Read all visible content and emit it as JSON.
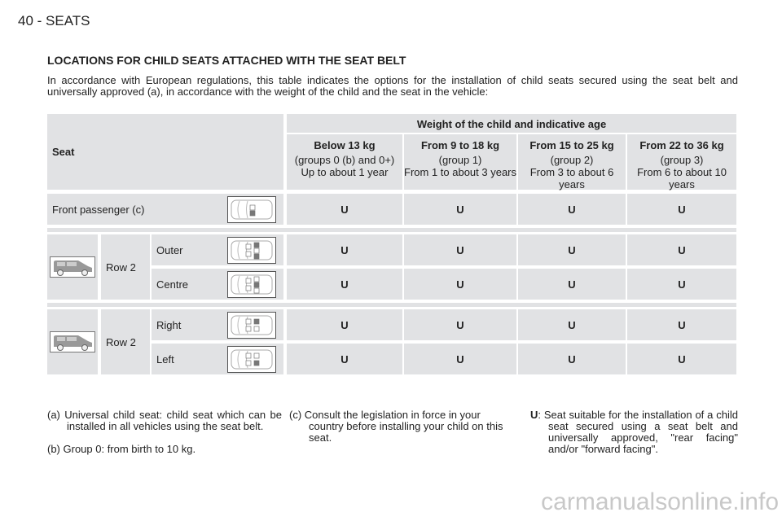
{
  "page": {
    "header": "40 - SEATS",
    "title": "LOCATIONS FOR CHILD SEATS ATTACHED WITH THE SEAT BELT",
    "intro": "In accordance with European regulations, this table indicates the options for the installation of child seats secured using the seat belt and universally approved (a), in accordance with the weight of the child and the seat in the vehicle:"
  },
  "table": {
    "seat_header": "Seat",
    "weight_header": "Weight of the child and indicative age",
    "columns": [
      {
        "weight": "Below 13 kg",
        "group": "(groups 0 (b) and 0+)",
        "age": "Up to about 1 year"
      },
      {
        "weight": "From 9 to 18 kg",
        "group": "(group 1)",
        "age": "From 1 to about 3 years"
      },
      {
        "weight": "From 15 to 25 kg",
        "group": "(group 2)",
        "age": "From 3 to about 6 years"
      },
      {
        "weight": "From 22 to 36 kg",
        "group": "(group 3)",
        "age": "From 6 to about 10 years"
      }
    ],
    "front": {
      "label": "Front passenger (c)",
      "values": [
        "U",
        "U",
        "U",
        "U"
      ]
    },
    "block1": {
      "row": "Row 2",
      "rows": [
        {
          "label": "Outer",
          "values": [
            "U",
            "U",
            "U",
            "U"
          ]
        },
        {
          "label": "Centre",
          "values": [
            "U",
            "U",
            "U",
            "U"
          ]
        }
      ]
    },
    "block2": {
      "row": "Row 2",
      "rows": [
        {
          "label": "Right",
          "values": [
            "U",
            "U",
            "U",
            "U"
          ]
        },
        {
          "label": "Left",
          "values": [
            "U",
            "U",
            "U",
            "U"
          ]
        }
      ]
    }
  },
  "notes": {
    "a": "(a) Universal child seat: child seat which can be installed in all vehicles using the seat belt.",
    "b": "(b) Group 0: from birth to 10 kg.",
    "c": "(c) Consult the legislation in force in your country before installing your child on this seat.",
    "u_key": "U",
    "u_text": ": Seat suitable for the installation of a child seat secured using a seat belt and universally approved, \"rear facing\" and/or \"forward facing\"."
  },
  "watermark": "carmanualsonline.info"
}
